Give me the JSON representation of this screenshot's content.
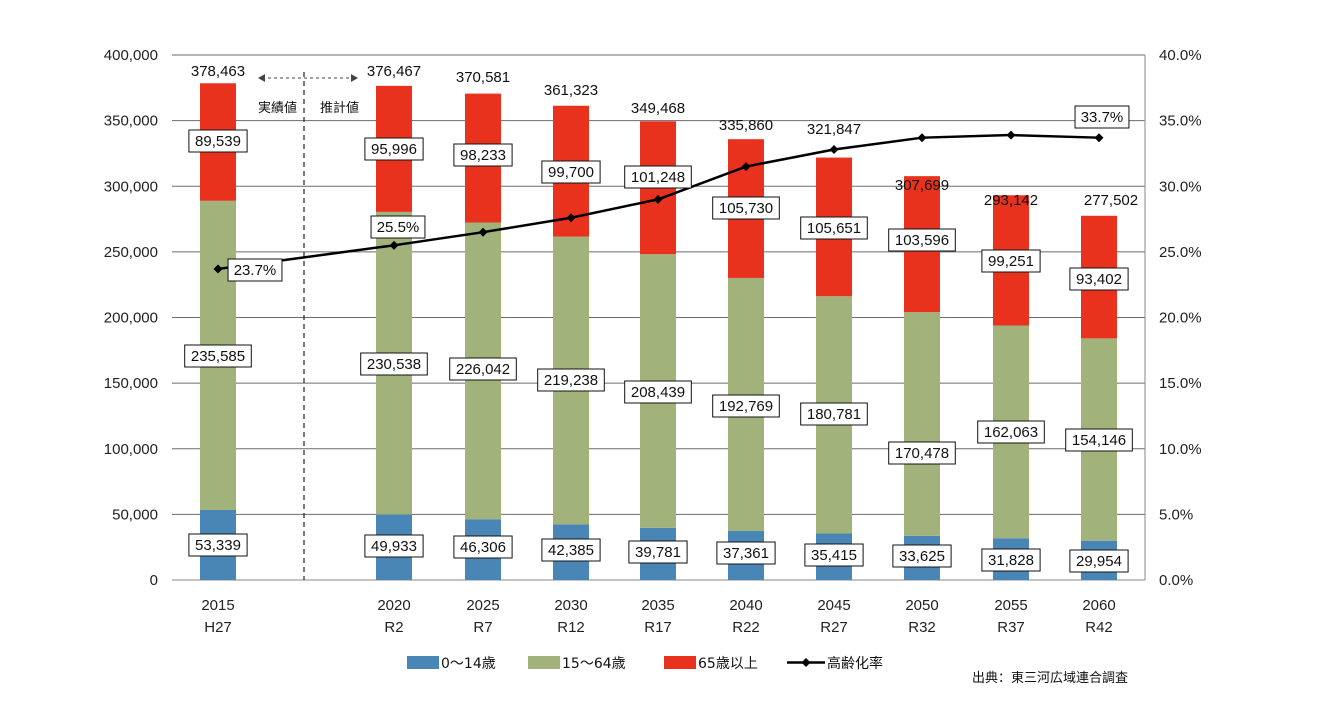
{
  "chart_data": {
    "type": "bar",
    "stacked": true,
    "categories": [
      [
        "2015",
        "H27"
      ],
      [
        "2020",
        "R2"
      ],
      [
        "2025",
        "R7"
      ],
      [
        "2030",
        "R12"
      ],
      [
        "2035",
        "R17"
      ],
      [
        "2040",
        "R22"
      ],
      [
        "2045",
        "R27"
      ],
      [
        "2050",
        "R32"
      ],
      [
        "2055",
        "R37"
      ],
      [
        "2060",
        "R42"
      ]
    ],
    "series": [
      {
        "name": "0〜14歳",
        "color": "#4a86b5",
        "values": [
          53339,
          49933,
          46306,
          42385,
          39781,
          37361,
          35415,
          33625,
          31828,
          29954
        ],
        "labels": [
          "53,339",
          "49,933",
          "46,306",
          "42,385",
          "39,781",
          "37,361",
          "35,415",
          "33,625",
          "31,828",
          "29,954"
        ]
      },
      {
        "name": "15〜64歳",
        "color": "#a1b37b",
        "values": [
          235585,
          230538,
          226042,
          219238,
          208439,
          192769,
          180781,
          170478,
          162063,
          154146
        ],
        "labels": [
          "235,585",
          "230,538",
          "226,042",
          "219,238",
          "208,439",
          "192,769",
          "180,781",
          "170,478",
          "162,063",
          "154,146"
        ]
      },
      {
        "name": "65歳以上",
        "color": "#e8321e",
        "values": [
          89539,
          95996,
          98233,
          99700,
          101248,
          105730,
          105651,
          103596,
          99251,
          93402
        ],
        "labels": [
          "89,539",
          "95,996",
          "98,233",
          "99,700",
          "101,248",
          "105,730",
          "105,651",
          "103,596",
          "99,251",
          "93,402"
        ]
      }
    ],
    "totals": [
      378463,
      376467,
      370581,
      361323,
      349468,
      335860,
      321847,
      307699,
      293142,
      277502
    ],
    "total_labels": [
      "378,463",
      "376,467",
      "370,581",
      "361,323",
      "349,468",
      "335,860",
      "321,847",
      "307,699",
      "293,142",
      "277,502"
    ],
    "line": {
      "name": "高齢化率",
      "axis": "right",
      "values": [
        23.7,
        25.5,
        26.5,
        27.6,
        29.0,
        31.5,
        32.8,
        33.7,
        33.9,
        33.7
      ],
      "labels": [
        "23.7%",
        "25.5%",
        "",
        "",
        "",
        "",
        "",
        "",
        "",
        "33.7%"
      ]
    },
    "y_left": {
      "min": 0,
      "max": 400000,
      "ticks": [
        "0",
        "50,000",
        "100,000",
        "150,000",
        "200,000",
        "250,000",
        "300,000",
        "350,000",
        "400,000"
      ]
    },
    "y_right": {
      "min": 0,
      "max": 40,
      "ticks": [
        "0.0%",
        "5.0%",
        "10.0%",
        "15.0%",
        "20.0%",
        "25.0%",
        "30.0%",
        "35.0%",
        "40.0%"
      ]
    },
    "grid": true,
    "legend_position": "bottom",
    "annotations": {
      "actual": "実績値",
      "projected": "推計値"
    },
    "source": "出典：東三河広域連合調査"
  }
}
